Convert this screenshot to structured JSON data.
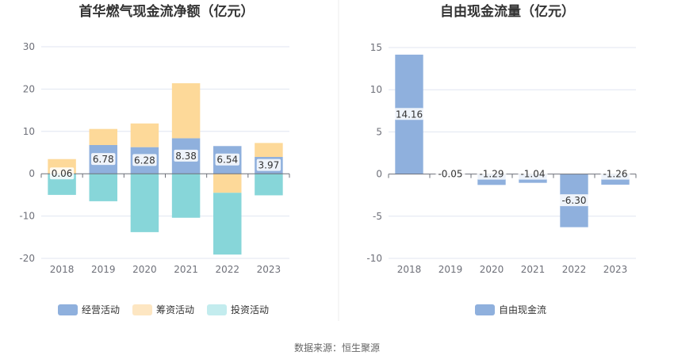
{
  "colors": {
    "operating": "#8fb0dd",
    "financing": "#fdd999",
    "investing": "#87d6d9",
    "free_cf": "#8fb0dd",
    "legend_financing": "#fde6c2",
    "legend_investing": "#c3ecee",
    "grid": "#e0e6f1",
    "axis": "#6e7079"
  },
  "source": "数据来源：恒生聚源",
  "chart_data": [
    {
      "type": "bar",
      "stacked": true,
      "title": "首华燃气现金流净额（亿元）",
      "categories": [
        "2018",
        "2019",
        "2020",
        "2021",
        "2022",
        "2023"
      ],
      "ylim": [
        -20,
        30
      ],
      "yticks": [
        -20,
        -10,
        0,
        10,
        20,
        30
      ],
      "grid": true,
      "legend_position": "bottom",
      "series": [
        {
          "name": "经营活动",
          "values": [
            0.06,
            6.78,
            6.28,
            8.38,
            6.54,
            3.97
          ]
        },
        {
          "name": "筹资活动",
          "values": [
            3.4,
            3.8,
            5.6,
            13.0,
            -4.5,
            3.3
          ]
        },
        {
          "name": "投资活动",
          "values": [
            -5.0,
            -6.5,
            -13.8,
            -10.4,
            -14.6,
            -5.1
          ]
        }
      ],
      "data_labels": [
        "0.06",
        "6.78",
        "6.28",
        "8.38",
        "6.54",
        "3.97"
      ]
    },
    {
      "type": "bar",
      "title": "自由现金流量（亿元）",
      "categories": [
        "2018",
        "2019",
        "2020",
        "2021",
        "2022",
        "2023"
      ],
      "ylim": [
        -10,
        15
      ],
      "yticks": [
        -10,
        -5,
        0,
        5,
        10,
        15
      ],
      "grid": true,
      "legend_position": "bottom",
      "series": [
        {
          "name": "自由现金流",
          "values": [
            14.16,
            -0.05,
            -1.29,
            -1.04,
            -6.3,
            -1.26
          ]
        }
      ],
      "data_labels": [
        "14.16",
        "-0.05",
        "-1.29",
        "-1.04",
        "-6.30",
        "-1.26"
      ]
    }
  ]
}
